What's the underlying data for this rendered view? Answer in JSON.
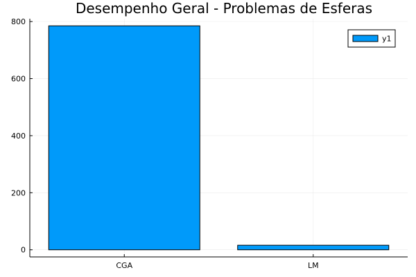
{
  "chart_data": {
    "type": "bar",
    "title": "Desempenho Geral - Problemas de Esferas",
    "xlabel": "",
    "ylabel": "",
    "categories": [
      "CGA",
      "LM"
    ],
    "series": [
      {
        "name": "y1",
        "values": [
          785,
          16
        ]
      }
    ],
    "ylim": [
      -25,
      810
    ],
    "yticks": [
      0,
      200,
      400,
      600,
      800
    ],
    "grid": true,
    "legend_position": "top-right",
    "colors": {
      "bar": "#009AFA",
      "edge": "#000000",
      "grid": "#EBEBEB",
      "axis": "#000000"
    }
  }
}
